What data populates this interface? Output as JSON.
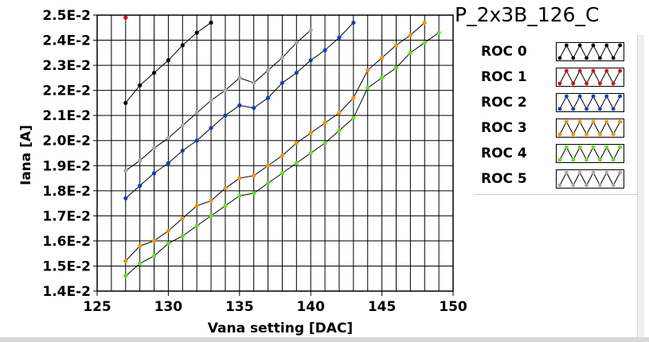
{
  "title": "P_2x3B_126_C",
  "chart_data": {
    "type": "line",
    "xlabel": "Vana setting [DAC]",
    "ylabel": "Iana [A]",
    "xlim": [
      125,
      150
    ],
    "ylim": [
      0.014,
      0.025
    ],
    "x_ticks": [
      125,
      130,
      135,
      140,
      145,
      150
    ],
    "y_ticks": [
      "1.4E-2",
      "1.5E-2",
      "1.6E-2",
      "1.7E-2",
      "1.8E-2",
      "1.9E-2",
      "2.0E-2",
      "2.1E-2",
      "2.2E-2",
      "2.3E-2",
      "2.4E-2",
      "2.5E-2"
    ],
    "grid": true,
    "legend_position": "right",
    "series": [
      {
        "name": "ROC 0",
        "color": "#000000",
        "x": [
          127,
          128,
          129,
          130,
          131,
          132,
          133
        ],
        "y": [
          0.0215,
          0.0222,
          0.0227,
          0.0232,
          0.0238,
          0.0243,
          0.0247
        ]
      },
      {
        "name": "ROC 1",
        "color": "#e00000",
        "x": [
          127
        ],
        "y": [
          0.0249
        ]
      },
      {
        "name": "ROC 2",
        "color": "#0040c0",
        "x": [
          127,
          128,
          129,
          130,
          131,
          132,
          133,
          134,
          135,
          136,
          137,
          138,
          139,
          140,
          141,
          142,
          143
        ],
        "y": [
          0.0177,
          0.0182,
          0.0187,
          0.0191,
          0.0196,
          0.02,
          0.0205,
          0.021,
          0.0214,
          0.0213,
          0.0217,
          0.0223,
          0.0227,
          0.0232,
          0.0236,
          0.0241,
          0.0247
        ]
      },
      {
        "name": "ROC 3",
        "color": "#ff9000",
        "x": [
          127,
          128,
          129,
          130,
          131,
          132,
          133,
          134,
          135,
          136,
          137,
          138,
          139,
          140,
          141,
          142,
          143,
          144,
          145,
          146,
          147,
          148
        ],
        "y": [
          0.0152,
          0.0158,
          0.016,
          0.0164,
          0.0169,
          0.0174,
          0.0176,
          0.0181,
          0.0185,
          0.0186,
          0.019,
          0.0194,
          0.0199,
          0.0203,
          0.0207,
          0.0211,
          0.0217,
          0.0228,
          0.0233,
          0.0238,
          0.0242,
          0.0247
        ]
      },
      {
        "name": "ROC 4",
        "color": "#60e020",
        "x": [
          127,
          128,
          129,
          130,
          131,
          132,
          133,
          134,
          135,
          136,
          137,
          138,
          139,
          140,
          141,
          142,
          143,
          144,
          145,
          146,
          147,
          148,
          149
        ],
        "y": [
          0.0146,
          0.0151,
          0.0154,
          0.0159,
          0.0162,
          0.0166,
          0.017,
          0.0174,
          0.0178,
          0.0179,
          0.0183,
          0.0187,
          0.0191,
          0.0195,
          0.0199,
          0.0204,
          0.0209,
          0.0221,
          0.0225,
          0.0229,
          0.0235,
          0.0239,
          0.0243
        ]
      },
      {
        "name": "ROC 5",
        "color": "#a8a8a8",
        "x": [
          127,
          128,
          129,
          130,
          131,
          132,
          133,
          134,
          135,
          136,
          137,
          138,
          139,
          140
        ],
        "y": [
          0.0188,
          0.0192,
          0.0197,
          0.0201,
          0.0206,
          0.0211,
          0.0216,
          0.022,
          0.0225,
          0.0223,
          0.0228,
          0.0233,
          0.0239,
          0.0244
        ]
      }
    ]
  }
}
